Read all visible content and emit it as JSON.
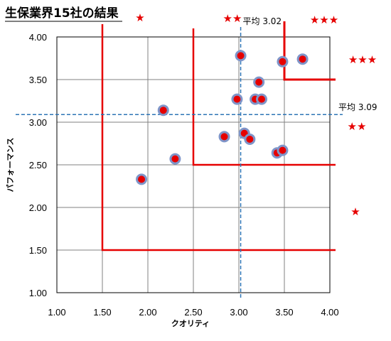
{
  "chart_data": {
    "type": "scatter",
    "title": "生保業界15社の結果",
    "xlabel": "クオリティ",
    "ylabel": "パフォーマンス",
    "xlim": [
      1.0,
      4.0
    ],
    "ylim": [
      1.0,
      4.0
    ],
    "x_ticks": [
      "1.00",
      "1.50",
      "2.00",
      "2.50",
      "3.00",
      "3.50",
      "4.00"
    ],
    "y_ticks": [
      "1.00",
      "1.50",
      "2.00",
      "2.50",
      "3.00",
      "3.50",
      "4.00"
    ],
    "grid": true,
    "points": [
      {
        "x": 1.93,
        "y": 2.33
      },
      {
        "x": 2.17,
        "y": 3.14
      },
      {
        "x": 2.3,
        "y": 2.57
      },
      {
        "x": 2.84,
        "y": 2.83
      },
      {
        "x": 2.98,
        "y": 3.27
      },
      {
        "x": 3.02,
        "y": 3.78
      },
      {
        "x": 3.06,
        "y": 2.87
      },
      {
        "x": 3.12,
        "y": 2.8
      },
      {
        "x": 3.18,
        "y": 3.27
      },
      {
        "x": 3.22,
        "y": 3.47
      },
      {
        "x": 3.25,
        "y": 3.27
      },
      {
        "x": 3.42,
        "y": 2.64
      },
      {
        "x": 3.48,
        "y": 2.67
      },
      {
        "x": 3.48,
        "y": 3.71
      },
      {
        "x": 3.7,
        "y": 3.74
      }
    ],
    "average_x": {
      "value": 3.02,
      "label": "平均 3.02"
    },
    "average_y": {
      "value": 3.09,
      "label": "平均 3.09"
    },
    "zones": [
      {
        "x": 1.5,
        "y": 1.5
      },
      {
        "x": 2.5,
        "y": 2.5
      },
      {
        "x": 3.5,
        "y": 3.5
      }
    ],
    "rating_labels": [
      {
        "text": "★",
        "position": "top, column 1"
      },
      {
        "text": "★★",
        "position": "top, column 2"
      },
      {
        "text": "★★★",
        "position": "top-right"
      },
      {
        "text": "★★★",
        "position": "right, row 1"
      },
      {
        "text": "★★",
        "position": "right, row 2"
      },
      {
        "text": "★",
        "position": "right, row 3"
      }
    ],
    "colors": {
      "point_fill": "#e60000",
      "point_ring": "#7f95c9",
      "zone_line": "#e60000",
      "average_line": "#2e75b6",
      "grid": "#808080"
    }
  }
}
